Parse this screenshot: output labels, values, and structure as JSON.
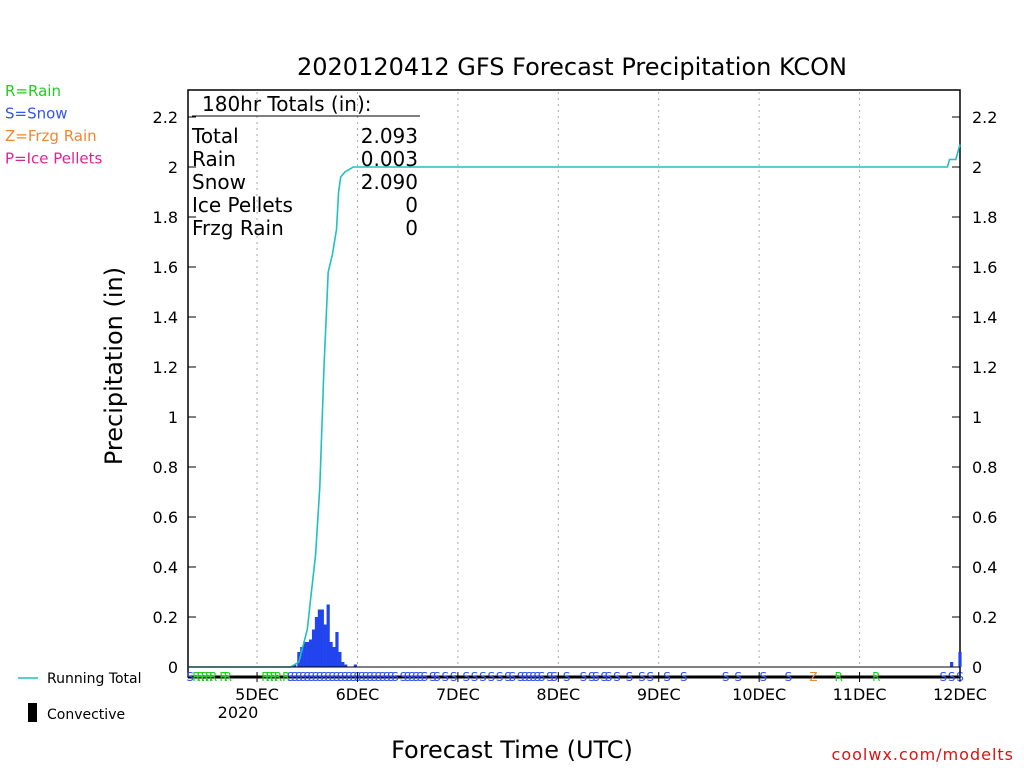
{
  "chart_data": {
    "type": "bar",
    "title": "2020120412 GFS Forecast Precipitation KCON",
    "xlabel": "Forecast Time (UTC)",
    "ylabel": "Precipitation (in)",
    "ylim": [
      0,
      2.3
    ],
    "y_ticks": [
      "0",
      "0.2",
      "0.4",
      "0.6",
      "0.8",
      "1",
      "1.2",
      "1.4",
      "1.6",
      "1.8",
      "2",
      "2.2"
    ],
    "x_start_hours": -4.5,
    "x_end_hours": 180,
    "day_ticks": [
      {
        "label": "5DEC",
        "hours": 12
      },
      {
        "label": "6DEC",
        "hours": 36
      },
      {
        "label": "7DEC",
        "hours": 60
      },
      {
        "label": "8DEC",
        "hours": 84
      },
      {
        "label": "9DEC",
        "hours": 108
      },
      {
        "label": "10DEC",
        "hours": 132
      },
      {
        "label": "11DEC",
        "hours": 156
      },
      {
        "label": "12DEC",
        "hours": 180
      }
    ],
    "year_label": "2020",
    "grid": "vertical dotted lines at each day",
    "legend": [
      {
        "label": "R=Rain",
        "color": "#22cc22"
      },
      {
        "label": "S=Snow",
        "color": "#3355ee"
      },
      {
        "label": "Z=Frzg Rain",
        "color": "#ee8833"
      },
      {
        "label": "P=Ice Pellets",
        "color": "#dd2299"
      }
    ],
    "line_legend": "Running Total",
    "bar_legend": "Convective",
    "totals": {
      "header": "180hr Totals (in):",
      "rows": [
        {
          "label": "Total",
          "value": "2.093"
        },
        {
          "label": "Rain",
          "value": "0.003"
        },
        {
          "label": "Snow",
          "value": "2.090"
        },
        {
          "label": "Ice Pellets",
          "value": "0"
        },
        {
          "label": "Frzg Rain",
          "value": "0"
        }
      ]
    },
    "series": [
      {
        "name": "Running Total",
        "color": "#20c0c0",
        "points": [
          [
            -4.5,
            0
          ],
          [
            20,
            0
          ],
          [
            22,
            0.02
          ],
          [
            24,
            0.15
          ],
          [
            25,
            0.3
          ],
          [
            26,
            0.45
          ],
          [
            27,
            0.72
          ],
          [
            28,
            1.2
          ],
          [
            29,
            1.58
          ],
          [
            30,
            1.65
          ],
          [
            31,
            1.75
          ],
          [
            31.5,
            1.9
          ],
          [
            32,
            1.96
          ],
          [
            33,
            1.98
          ],
          [
            35,
            2.0
          ],
          [
            40,
            2.0
          ],
          [
            177,
            2.0
          ],
          [
            177.5,
            2.03
          ],
          [
            179,
            2.03
          ],
          [
            180,
            2.09
          ]
        ]
      },
      {
        "name": "Convective",
        "color": "#2244ee",
        "bars": [
          [
            21,
            0.01
          ],
          [
            22,
            0.06
          ],
          [
            22.7,
            0.08
          ],
          [
            23.4,
            0.1
          ],
          [
            24.1,
            0.1
          ],
          [
            24.8,
            0.11
          ],
          [
            25.5,
            0.15
          ],
          [
            26.2,
            0.2
          ],
          [
            26.9,
            0.23
          ],
          [
            27.6,
            0.23
          ],
          [
            28.3,
            0.17
          ],
          [
            29,
            0.25
          ],
          [
            29.7,
            0.1
          ],
          [
            30.4,
            0.08
          ],
          [
            31.1,
            0.14
          ],
          [
            31.8,
            0.06
          ],
          [
            32.5,
            0.02
          ],
          [
            33.2,
            0.01
          ],
          [
            35.5,
            0.01
          ],
          [
            178,
            0.02
          ],
          [
            180,
            0.06
          ]
        ]
      }
    ],
    "ptype_marks": [
      {
        "hours": -4,
        "type": "S"
      },
      {
        "hours": -2.5,
        "type": "R"
      },
      {
        "hours": -1.5,
        "type": "R"
      },
      {
        "hours": -0.5,
        "type": "R"
      },
      {
        "hours": 0.5,
        "type": "R"
      },
      {
        "hours": 1.5,
        "type": "R"
      },
      {
        "hours": 4,
        "type": "R"
      },
      {
        "hours": 5,
        "type": "R"
      },
      {
        "hours": 14,
        "type": "R"
      },
      {
        "hours": 15,
        "type": "R"
      },
      {
        "hours": 16,
        "type": "R"
      },
      {
        "hours": 17,
        "type": "R"
      },
      {
        "hours": 19,
        "type": "R"
      },
      {
        "hours": 20,
        "type": "S"
      },
      {
        "hours": 21,
        "type": "S"
      },
      {
        "hours": 22,
        "type": "S"
      },
      {
        "hours": 23,
        "type": "S"
      },
      {
        "hours": 24,
        "type": "S"
      },
      {
        "hours": 25,
        "type": "S"
      },
      {
        "hours": 26,
        "type": "S"
      },
      {
        "hours": 27,
        "type": "S"
      },
      {
        "hours": 28,
        "type": "S"
      },
      {
        "hours": 29,
        "type": "S"
      },
      {
        "hours": 30,
        "type": "S"
      },
      {
        "hours": 31,
        "type": "S"
      },
      {
        "hours": 32,
        "type": "S"
      },
      {
        "hours": 33,
        "type": "S"
      },
      {
        "hours": 34,
        "type": "S"
      },
      {
        "hours": 35,
        "type": "S"
      },
      {
        "hours": 36,
        "type": "S"
      },
      {
        "hours": 37,
        "type": "S"
      },
      {
        "hours": 38,
        "type": "S"
      },
      {
        "hours": 39,
        "type": "S"
      },
      {
        "hours": 40,
        "type": "S"
      },
      {
        "hours": 41,
        "type": "S"
      },
      {
        "hours": 42,
        "type": "S"
      },
      {
        "hours": 43,
        "type": "S"
      },
      {
        "hours": 44,
        "type": "S"
      },
      {
        "hours": 45,
        "type": "S"
      },
      {
        "hours": 47,
        "type": "S"
      },
      {
        "hours": 48,
        "type": "S"
      },
      {
        "hours": 49,
        "type": "S"
      },
      {
        "hours": 50,
        "type": "S"
      },
      {
        "hours": 51,
        "type": "S"
      },
      {
        "hours": 52,
        "type": "S"
      },
      {
        "hours": 54,
        "type": "S"
      },
      {
        "hours": 55,
        "type": "S"
      },
      {
        "hours": 57,
        "type": "S"
      },
      {
        "hours": 59,
        "type": "S"
      },
      {
        "hours": 62,
        "type": "S"
      },
      {
        "hours": 64,
        "type": "S"
      },
      {
        "hours": 66,
        "type": "S"
      },
      {
        "hours": 68,
        "type": "S"
      },
      {
        "hours": 70,
        "type": "S"
      },
      {
        "hours": 72,
        "type": "S"
      },
      {
        "hours": 73,
        "type": "S"
      },
      {
        "hours": 75,
        "type": "S"
      },
      {
        "hours": 76,
        "type": "S"
      },
      {
        "hours": 77,
        "type": "S"
      },
      {
        "hours": 78,
        "type": "S"
      },
      {
        "hours": 79,
        "type": "S"
      },
      {
        "hours": 80,
        "type": "S"
      },
      {
        "hours": 82,
        "type": "S"
      },
      {
        "hours": 83,
        "type": "S"
      },
      {
        "hours": 86,
        "type": "S"
      },
      {
        "hours": 90,
        "type": "S"
      },
      {
        "hours": 92,
        "type": "S"
      },
      {
        "hours": 93,
        "type": "S"
      },
      {
        "hours": 95,
        "type": "S"
      },
      {
        "hours": 96,
        "type": "S"
      },
      {
        "hours": 98,
        "type": "S"
      },
      {
        "hours": 101,
        "type": "S"
      },
      {
        "hours": 104,
        "type": "S"
      },
      {
        "hours": 106,
        "type": "S"
      },
      {
        "hours": 110,
        "type": "S"
      },
      {
        "hours": 114,
        "type": "S"
      },
      {
        "hours": 124,
        "type": "S"
      },
      {
        "hours": 127,
        "type": "S"
      },
      {
        "hours": 133,
        "type": "S"
      },
      {
        "hours": 139,
        "type": "S"
      },
      {
        "hours": 145,
        "type": "Z"
      },
      {
        "hours": 151,
        "type": "R"
      },
      {
        "hours": 160,
        "type": "R"
      },
      {
        "hours": 176,
        "type": "S"
      },
      {
        "hours": 178,
        "type": "S"
      },
      {
        "hours": 180,
        "type": "S"
      }
    ]
  },
  "credit": "coolwx.com/modelts"
}
